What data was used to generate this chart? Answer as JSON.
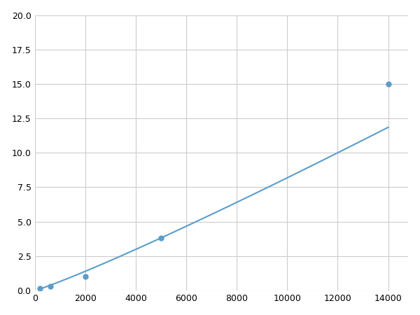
{
  "x_data": [
    200,
    600,
    2000,
    5000,
    14000
  ],
  "y_data": [
    0.15,
    0.3,
    1.0,
    3.8,
    15.0
  ],
  "line_color": "#5b9dc9",
  "marker_color": "#5b9dc9",
  "marker_style": "o",
  "marker_size": 5,
  "line_width": 1.5,
  "xlim": [
    0,
    14800
  ],
  "ylim": [
    0,
    20
  ],
  "xticks": [
    0,
    2000,
    4000,
    6000,
    8000,
    10000,
    12000,
    14000
  ],
  "yticks": [
    0.0,
    2.5,
    5.0,
    7.5,
    10.0,
    12.5,
    15.0,
    17.5,
    20.0
  ],
  "grid": true,
  "grid_color": "#cccccc",
  "background_color": "#ffffff",
  "figure_background": "#ffffff"
}
